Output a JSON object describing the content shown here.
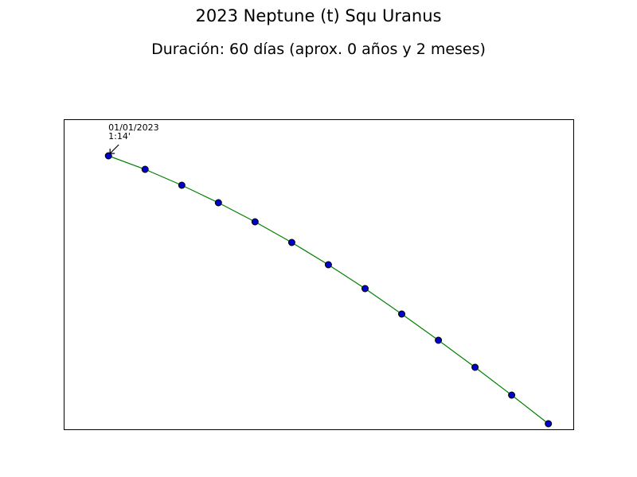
{
  "chart_data": {
    "type": "line",
    "title": "2023 Neptune (t) Squ Uranus",
    "subtitle": "Duración: 60 días (aprox. 0 años y 2 meses)",
    "x": [
      0,
      5,
      10,
      15,
      20,
      25,
      30,
      35,
      40,
      45,
      50,
      55,
      60
    ],
    "y": [
      74,
      72.3,
      70.3,
      68.1,
      65.7,
      63.1,
      60.3,
      57.3,
      54.1,
      50.8,
      47.4,
      43.9,
      40.3
    ],
    "xlim": [
      -6.1,
      63.4
    ],
    "ylim": [
      39.6,
      78.6
    ],
    "axis_ticks_visible": false,
    "grid": false,
    "line_color": "#008000",
    "marker_face_color": "#0000cc",
    "marker_edge_color": "#000000",
    "annotation": {
      "point_index": 0,
      "line1": "01/01/2023",
      "line2": "1:14'"
    }
  }
}
